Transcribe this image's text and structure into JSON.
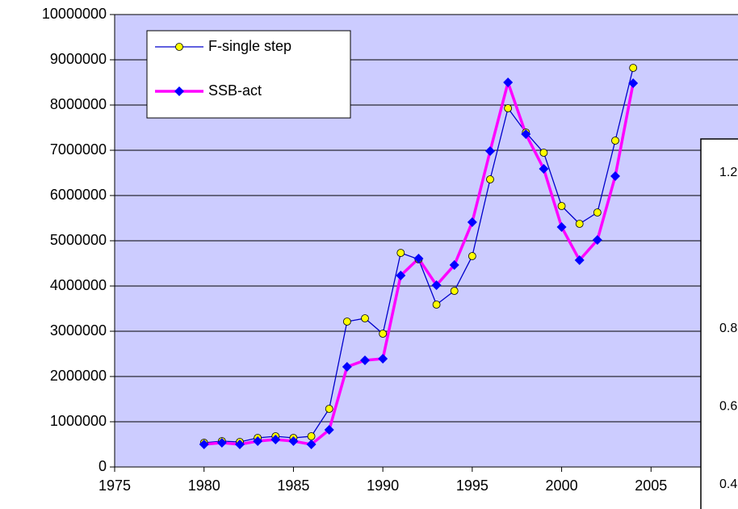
{
  "chart_data": [
    {
      "type": "line",
      "x": [
        1980,
        1981,
        1982,
        1983,
        1984,
        1985,
        1986,
        1987,
        1988,
        1989,
        1990,
        1991,
        1992,
        1993,
        1994,
        1995,
        1996,
        1997,
        1998,
        1999,
        2000,
        2001,
        2002,
        2003,
        2004
      ],
      "series": [
        {
          "name": "F-single step",
          "color": "#0000cc",
          "marker_color": "#ffff00",
          "values": [
            536000,
            571000,
            554000,
            643000,
            679000,
            643000,
            679000,
            1286000,
            3214000,
            3286000,
            2946000,
            4732000,
            4589000,
            3589000,
            3893000,
            4661000,
            6357000,
            7929000,
            7393000,
            6946000,
            5768000,
            5375000,
            5625000,
            7214000,
            8821000
          ]
        },
        {
          "name": "SSB-act",
          "color": "#ff00ff",
          "marker_color": "#0000ff",
          "values": [
            500000,
            536000,
            500000,
            571000,
            607000,
            571000,
            500000,
            821000,
            2214000,
            2357000,
            2393000,
            4232000,
            4607000,
            4018000,
            4464000,
            5411000,
            6982000,
            8500000,
            7357000,
            6589000,
            5304000,
            4571000,
            5018000,
            6429000,
            8482000
          ]
        }
      ],
      "xlim": [
        1975,
        2010
      ],
      "xticks": [
        1975,
        1980,
        1985,
        1990,
        1995,
        2000,
        2005
      ],
      "ylim": [
        0,
        10000000
      ],
      "yticks": [
        0,
        1000000,
        2000000,
        3000000,
        4000000,
        5000000,
        6000000,
        7000000,
        8000000,
        9000000,
        10000000
      ],
      "grid": true,
      "legend": "top-left",
      "background": "#ccccff"
    },
    {
      "type": "line",
      "ylim": [
        0.4,
        1.2
      ],
      "yticks": [
        0.4,
        0.6,
        0.8,
        1.2
      ]
    }
  ]
}
